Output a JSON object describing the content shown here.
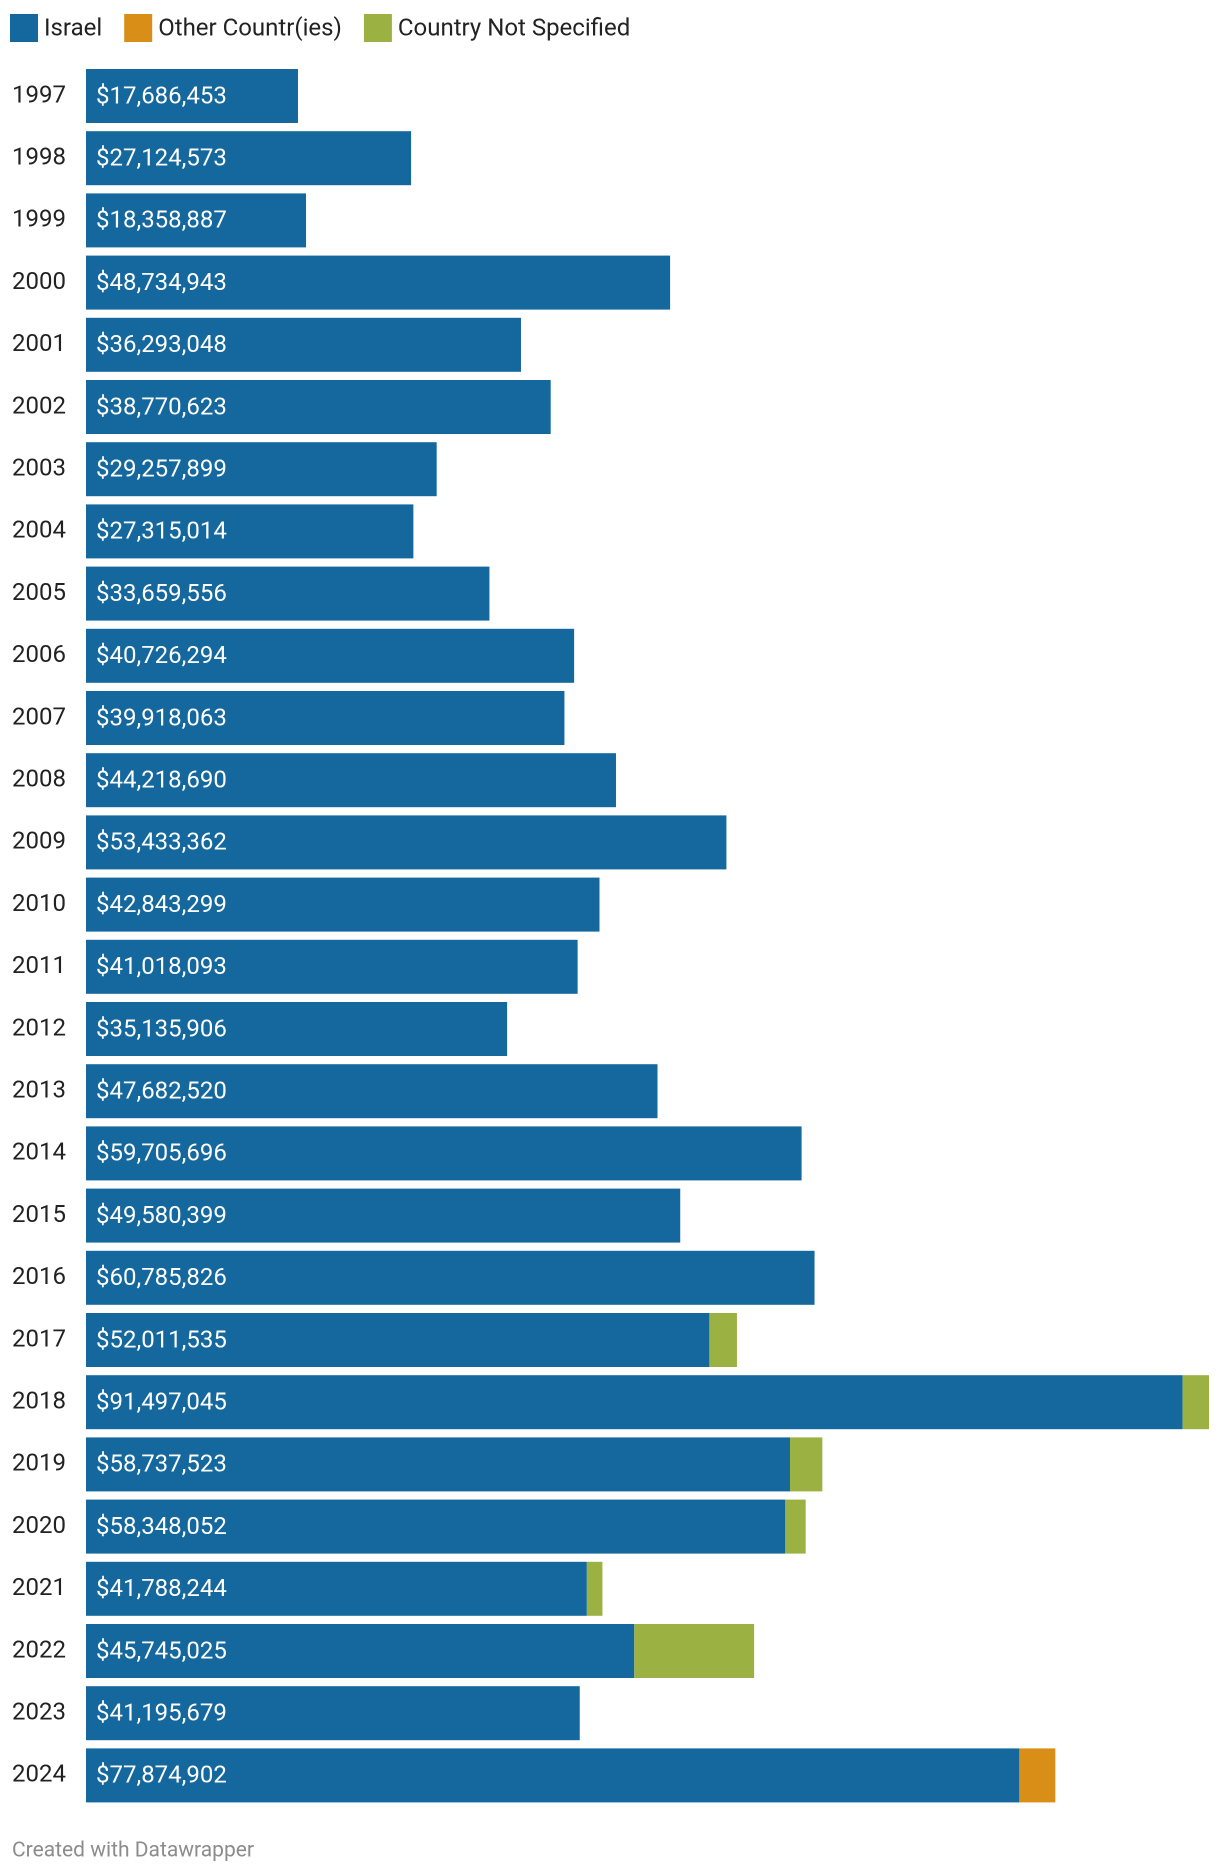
{
  "chart_data": {
    "type": "stacked_bar_horizontal",
    "categories": [
      "1997",
      "1998",
      "1999",
      "2000",
      "2001",
      "2002",
      "2003",
      "2004",
      "2005",
      "2006",
      "2007",
      "2008",
      "2009",
      "2010",
      "2011",
      "2012",
      "2013",
      "2014",
      "2015",
      "2016",
      "2017",
      "2018",
      "2019",
      "2020",
      "2021",
      "2022",
      "2023",
      "2024"
    ],
    "series": [
      {
        "name": "Israel",
        "color": "#15689e",
        "values": [
          17686453,
          27124573,
          18358887,
          48734943,
          36293048,
          38770623,
          29257899,
          27315014,
          33659556,
          40726294,
          39918063,
          44218690,
          53433362,
          42843299,
          41018093,
          35135906,
          47682520,
          59705696,
          49580399,
          60785826,
          52011535,
          91497045,
          58737523,
          58348052,
          41788244,
          45745025,
          41195679,
          77874902
        ],
        "value_labels": [
          "$17,686,453",
          "$27,124,573",
          "$18,358,887",
          "$48,734,943",
          "$36,293,048",
          "$38,770,623",
          "$29,257,899",
          "$27,315,014",
          "$33,659,556",
          "$40,726,294",
          "$39,918,063",
          "$44,218,690",
          "$53,433,362",
          "$42,843,299",
          "$41,018,093",
          "$35,135,906",
          "$47,682,520",
          "$59,705,696",
          "$49,580,399",
          "$60,785,826",
          "$52,011,535",
          "$91,497,045",
          "$58,737,523",
          "$58,348,052",
          "$41,788,244",
          "$45,745,025",
          "$41,195,679",
          "$77,874,902"
        ]
      },
      {
        "name": "Other Countr(ies)",
        "color": "#d98f17",
        "values": [
          null,
          null,
          null,
          null,
          null,
          null,
          null,
          null,
          null,
          null,
          null,
          null,
          null,
          null,
          null,
          null,
          null,
          null,
          null,
          null,
          null,
          null,
          null,
          null,
          null,
          null,
          null,
          3000000
        ]
      },
      {
        "name": "Country Not Specified",
        "color": "#9bb243",
        "values": [
          null,
          null,
          null,
          null,
          null,
          null,
          null,
          null,
          null,
          null,
          null,
          null,
          null,
          null,
          null,
          null,
          null,
          null,
          null,
          null,
          2300000,
          2200000,
          2700000,
          1700000,
          1300000,
          10000000,
          null,
          null
        ]
      }
    ],
    "credit": "Created with Datawrapper"
  }
}
